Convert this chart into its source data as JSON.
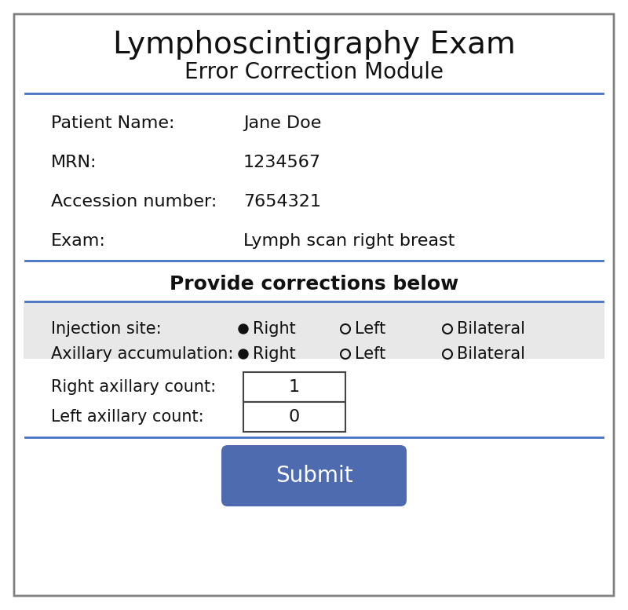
{
  "title_line1": "Lymphoscintigraphy Exam",
  "title_line2": "Error Correction Module",
  "bg_color": "#ffffff",
  "border_color": "#4472c4",
  "blue_line_color": "#4472c4",
  "patient_name_label": "Patient Name:",
  "patient_name_value": "Jane Doe",
  "mrn_label": "MRN:",
  "mrn_value": "1234567",
  "accession_label": "Accession number:",
  "accession_value": "7654321",
  "exam_label": "Exam:",
  "exam_value": "Lymph scan right breast",
  "corrections_header": "Provide corrections below",
  "injection_label": "Injection site:",
  "axillary_label": "Axillary accumulation:",
  "right_axillary_label": "Right axillary count:",
  "left_axillary_label": "Left axillary count:",
  "right_axillary_value": "1",
  "left_axillary_value": "0",
  "radio_options": [
    "Right",
    "Left",
    "Bilateral"
  ],
  "radio_selected": 0,
  "submit_text": "Submit",
  "submit_color": "#4F6BB0",
  "submit_text_color": "#ffffff",
  "gray_bg": "#e8e8e8",
  "outer_border_color": "#808080"
}
